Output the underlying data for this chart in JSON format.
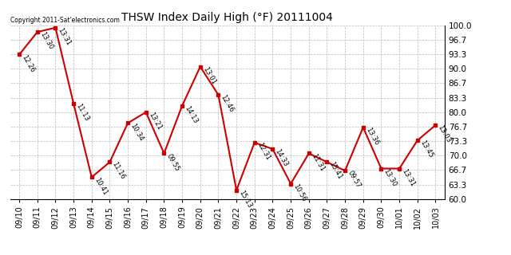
{
  "title": "THSW Index Daily High (°F) 20111004",
  "copyright": "Copyright 2011-Sat’electronics.com",
  "x_labels": [
    "09/10",
    "09/11",
    "09/12",
    "09/13",
    "09/14",
    "09/15",
    "09/16",
    "09/17",
    "09/18",
    "09/19",
    "09/20",
    "09/21",
    "09/22",
    "09/23",
    "09/24",
    "09/25",
    "09/26",
    "09/27",
    "09/28",
    "09/29",
    "09/30",
    "10/01",
    "10/02",
    "10/03"
  ],
  "y_values": [
    93.3,
    98.5,
    99.5,
    82.0,
    65.0,
    68.5,
    77.5,
    80.0,
    70.5,
    81.5,
    90.5,
    84.0,
    62.0,
    73.0,
    71.5,
    63.5,
    70.5,
    68.5,
    66.5,
    76.5,
    67.0,
    67.0,
    73.5,
    77.0
  ],
  "time_labels": [
    "12:26",
    "13:30",
    "13:31",
    "11:13",
    "10:41",
    "11:16",
    "10:34",
    "13:21",
    "09:55",
    "14:13",
    "13:01",
    "12:46",
    "15:13",
    "12:31",
    "14:33",
    "10:56",
    "11:31",
    "15:41",
    "09:57",
    "13:36",
    "13:30",
    "13:31",
    "13:45",
    "13:03"
  ],
  "line_color": "#cc0000",
  "marker_color": "#cc0000",
  "bg_color": "#ffffff",
  "plot_bg_color": "#ffffff",
  "grid_color": "#bbbbbb",
  "ylim_min": 60.0,
  "ylim_max": 100.0,
  "yticks": [
    60.0,
    63.3,
    66.7,
    70.0,
    73.3,
    76.7,
    80.0,
    83.3,
    86.7,
    90.0,
    93.3,
    96.7,
    100.0
  ]
}
